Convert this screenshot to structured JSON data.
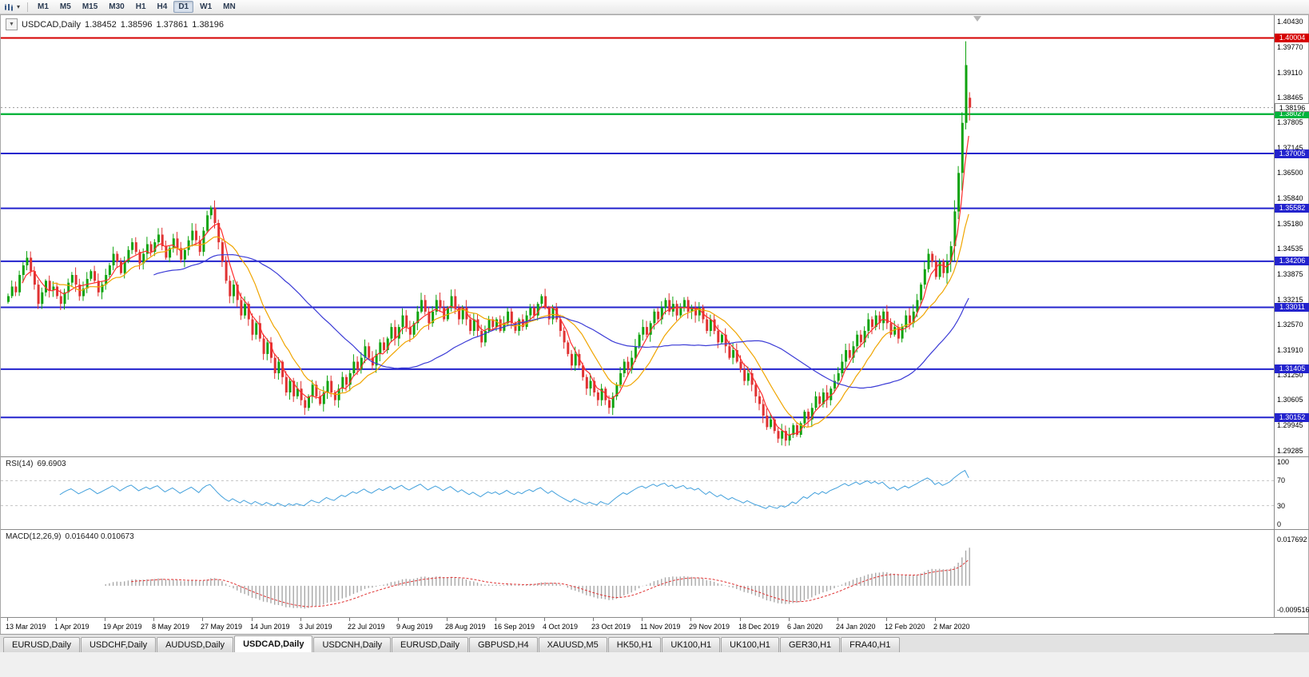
{
  "toolbar": {
    "timeframes": [
      {
        "label": "M1",
        "active": false
      },
      {
        "label": "M5",
        "active": false
      },
      {
        "label": "M15",
        "active": false
      },
      {
        "label": "M30",
        "active": false
      },
      {
        "label": "H1",
        "active": false
      },
      {
        "label": "H4",
        "active": false
      },
      {
        "label": "D1",
        "active": true
      },
      {
        "label": "W1",
        "active": false
      },
      {
        "label": "MN",
        "active": false
      }
    ],
    "icons": {
      "chart_type": "candlestick-chart",
      "dropdown_glyph": "▾"
    }
  },
  "icons": {
    "one_click_glyph": "▼"
  },
  "chart_data": {
    "type": "candlestick",
    "symbol_period": "USDCAD,Daily",
    "ohlc_header": {
      "open": "1.38452",
      "high": "1.38596",
      "low": "1.37861",
      "close": "1.38196"
    },
    "first_open": 1.3315,
    "spike_high": 1.3992,
    "colors": {
      "up": "#0fa30f",
      "down": "#e03232"
    },
    "y_ticks": [
      "1.40430",
      "1.39770",
      "1.39110",
      "1.38465",
      "1.37805",
      "1.37145",
      "1.36500",
      "1.35840",
      "1.35180",
      "1.34535",
      "1.33875",
      "1.33215",
      "1.32570",
      "1.31910",
      "1.31250",
      "1.30605",
      "1.29945",
      "1.29285"
    ],
    "x_labels": [
      "13 Mar 2019",
      "1 Apr 2019",
      "19 Apr 2019",
      "8 May 2019",
      "27 May 2019",
      "14 Jun 2019",
      "3 Jul 2019",
      "22 Jul 2019",
      "9 Aug 2019",
      "28 Aug 2019",
      "16 Sep 2019",
      "4 Oct 2019",
      "23 Oct 2019",
      "11 Nov 2019",
      "29 Nov 2019",
      "18 Dec 2019",
      "6 Jan 2020",
      "24 Jan 2020",
      "12 Feb 2020",
      "2 Mar 2020"
    ],
    "closes": [
      1.333,
      1.3355,
      1.334,
      1.3385,
      1.341,
      1.343,
      1.3395,
      1.336,
      1.331,
      1.334,
      1.337,
      1.3345,
      1.3355,
      1.333,
      1.331,
      1.334,
      1.3365,
      1.3385,
      1.336,
      1.333,
      1.335,
      1.3375,
      1.3395,
      1.337,
      1.334,
      1.336,
      1.3385,
      1.341,
      1.344,
      1.342,
      1.339,
      1.342,
      1.345,
      1.347,
      1.3445,
      1.3415,
      1.344,
      1.3465,
      1.3445,
      1.347,
      1.349,
      1.346,
      1.343,
      1.3455,
      1.348,
      1.3455,
      1.3425,
      1.345,
      1.3475,
      1.35,
      1.3475,
      1.3445,
      1.35,
      1.354,
      1.356,
      1.352,
      1.347,
      1.342,
      1.337,
      1.333,
      1.336,
      1.332,
      1.328,
      1.331,
      1.327,
      1.323,
      1.326,
      1.322,
      1.318,
      1.321,
      1.317,
      1.313,
      1.316,
      1.312,
      1.308,
      1.311,
      1.307,
      1.309,
      1.306,
      1.304,
      1.307,
      1.31,
      1.307,
      1.305,
      1.308,
      1.311,
      1.308,
      1.306,
      1.309,
      1.312,
      1.31,
      1.313,
      1.316,
      1.314,
      1.317,
      1.32,
      1.317,
      1.315,
      1.318,
      1.321,
      1.319,
      1.322,
      1.325,
      1.322,
      1.325,
      1.328,
      1.325,
      1.323,
      1.326,
      1.329,
      1.332,
      1.329,
      1.326,
      1.329,
      1.332,
      1.33,
      1.327,
      1.33,
      1.333,
      1.33,
      1.327,
      1.33,
      1.327,
      1.324,
      1.327,
      1.324,
      1.321,
      1.324,
      1.327,
      1.325,
      1.327,
      1.324,
      1.326,
      1.329,
      1.326,
      1.324,
      1.327,
      1.325,
      1.328,
      1.33,
      1.328,
      1.331,
      1.333,
      1.33,
      1.327,
      1.33,
      1.327,
      1.324,
      1.321,
      1.318,
      1.315,
      1.318,
      1.315,
      1.312,
      1.309,
      1.311,
      1.308,
      1.306,
      1.309,
      1.306,
      1.304,
      1.307,
      1.31,
      1.313,
      1.316,
      1.314,
      1.317,
      1.32,
      1.323,
      1.325,
      1.323,
      1.326,
      1.329,
      1.327,
      1.33,
      1.332,
      1.329,
      1.331,
      1.328,
      1.33,
      1.332,
      1.329,
      1.33,
      1.328,
      1.33,
      1.327,
      1.324,
      1.327,
      1.324,
      1.321,
      1.323,
      1.32,
      1.317,
      1.319,
      1.316,
      1.314,
      1.311,
      1.313,
      1.31,
      1.307,
      1.305,
      1.302,
      1.299,
      1.301,
      1.298,
      1.296,
      1.298,
      1.2955,
      1.297,
      1.2995,
      1.297,
      1.3,
      1.303,
      1.301,
      1.304,
      1.307,
      1.305,
      1.308,
      1.306,
      1.309,
      1.311,
      1.313,
      1.316,
      1.319,
      1.317,
      1.32,
      1.323,
      1.321,
      1.324,
      1.327,
      1.325,
      1.328,
      1.326,
      1.329,
      1.326,
      1.323,
      1.325,
      1.322,
      1.325,
      1.328,
      1.326,
      1.329,
      1.332,
      1.336,
      1.34,
      1.344,
      1.342,
      1.338,
      1.342,
      1.339,
      1.342,
      1.346,
      1.355,
      1.365,
      1.378,
      1.393,
      1.382
    ],
    "moving_averages": [
      {
        "period": 5,
        "color": "#ff2d2d",
        "name": "ma-fast-line"
      },
      {
        "period": 13,
        "color": "#f0a500",
        "name": "ma-mid-line"
      },
      {
        "period": 40,
        "color": "#3b3bd6",
        "name": "ma-slow-line"
      }
    ],
    "levels": [
      {
        "price": 1.40004,
        "label": "1.40004",
        "color": "#d60000",
        "width": 2
      },
      {
        "price": 1.38027,
        "label": "1.38027",
        "color": "#00b43c",
        "width": 2.4
      },
      {
        "price": 1.37005,
        "label": "1.37005",
        "color": "#2323cd",
        "width": 2
      },
      {
        "price": 1.35582,
        "label": "1.35582",
        "color": "#2323cd",
        "width": 2
      },
      {
        "price": 1.34206,
        "label": "1.34206",
        "color": "#2323cd",
        "width": 2
      },
      {
        "price": 1.33011,
        "label": "1.33011",
        "color": "#2323cd",
        "width": 2
      },
      {
        "price": 1.31405,
        "label": "1.31405",
        "color": "#2323cd",
        "width": 2
      },
      {
        "price": 1.30152,
        "label": "1.30152",
        "color": "#2323cd",
        "width": 2
      }
    ],
    "current_price": {
      "value": 1.38196,
      "label": "1.38196"
    },
    "indicators": [
      {
        "name": "RSI",
        "label": "RSI(14)",
        "value": "69.6903",
        "levels": [
          100,
          70,
          30,
          0
        ],
        "color": "#42a0dc"
      },
      {
        "name": "MACD",
        "label": "MACD(12,26,9)",
        "value_text": "0.016440 0.010673",
        "scale_max": "0.017692",
        "scale_min": "-0.009516",
        "histogram_color": "#a8a8a8",
        "signal_color": "#e03232"
      }
    ]
  },
  "tabs": [
    {
      "label": "EURUSD,Daily",
      "active": false
    },
    {
      "label": "USDCHF,Daily",
      "active": false
    },
    {
      "label": "AUDUSD,Daily",
      "active": false
    },
    {
      "label": "USDCAD,Daily",
      "active": true
    },
    {
      "label": "USDCNH,Daily",
      "active": false
    },
    {
      "label": "EURUSD,Daily",
      "active": false
    },
    {
      "label": "GBPUSD,H4",
      "active": false
    },
    {
      "label": "XAUUSD,M5",
      "active": false
    },
    {
      "label": "HK50,H1",
      "active": false
    },
    {
      "label": "UK100,H1",
      "active": false
    },
    {
      "label": "UK100,H1",
      "active": false
    },
    {
      "label": "GER30,H1",
      "active": false
    },
    {
      "label": "FRA40,H1",
      "active": false
    }
  ]
}
